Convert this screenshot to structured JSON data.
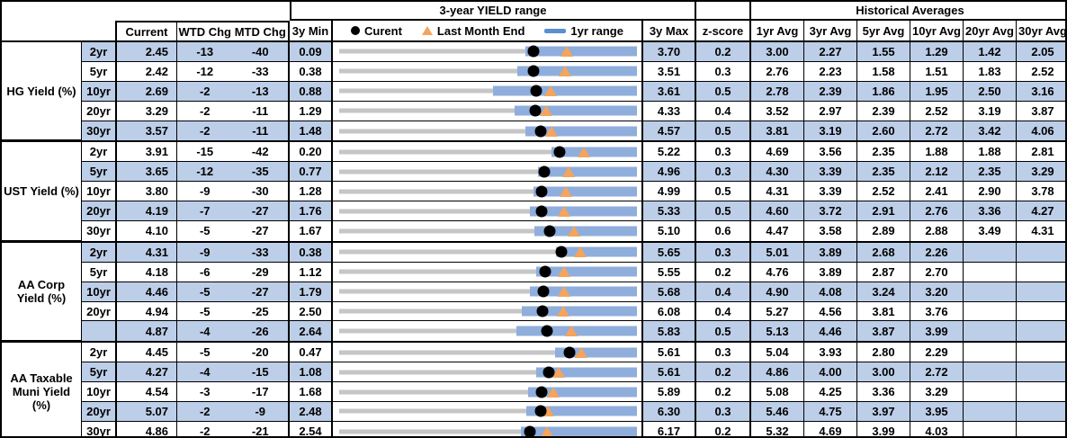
{
  "labels": {
    "range_title": "3-year YIELD range",
    "hist_title": "Historical Averages",
    "legend_current": "Curent",
    "legend_lme": "Last Month End",
    "legend_1yr": "1yr range"
  },
  "headers": {
    "current": "Current",
    "wtd": "WTD Chg",
    "mtd": "MTD Chg",
    "min": "3y Min",
    "max": "3y Max",
    "z": "z-score",
    "avgs": [
      "1yr Avg",
      "3yr Avg",
      "5yr Avg",
      "10yr Avg",
      "20yr Avg",
      "30yr Avg"
    ]
  },
  "colors": {
    "stripe": "#BCCEE8",
    "bar_1yr": "#8FAEDC",
    "track": "#C6C6C6",
    "marker_orange": "#F4A45C",
    "dot": "#000000"
  },
  "chart_data": {
    "type": "table",
    "title": "3-year YIELD range",
    "note": "Each row: bullet chart mapping [3y Min, 3y Max]; gray track = 3y range, blue bar = 1yr range (r1_lo to 3y Max), black dot = Current, orange triangle = Last Month End (current - mtd/100). r1_lo estimated from pixels.",
    "groups": [
      {
        "label": "HG Yield (%)",
        "rows": [
          {
            "tenor": "2yr",
            "current": "2.45",
            "wtd": "-13",
            "mtd": "-40",
            "min": "0.09",
            "max": "3.70",
            "lme": 2.85,
            "r1_lo": 2.35,
            "r1_hi": 3.7,
            "z": "0.2",
            "avgs": [
              "3.00",
              "2.27",
              "1.55",
              "1.29",
              "1.42",
              "2.05"
            ]
          },
          {
            "tenor": "5yr",
            "current": "2.42",
            "wtd": "-12",
            "mtd": "-33",
            "min": "0.38",
            "max": "3.51",
            "lme": 2.75,
            "r1_lo": 2.25,
            "r1_hi": 3.51,
            "z": "0.3",
            "avgs": [
              "2.76",
              "2.23",
              "1.58",
              "1.51",
              "1.83",
              "2.52"
            ]
          },
          {
            "tenor": "10yr",
            "current": "2.69",
            "wtd": "-2",
            "mtd": "-13",
            "min": "0.88",
            "max": "3.61",
            "lme": 2.82,
            "r1_lo": 2.29,
            "r1_hi": 3.61,
            "z": "0.5",
            "avgs": [
              "2.78",
              "2.39",
              "1.86",
              "1.95",
              "2.50",
              "3.16"
            ]
          },
          {
            "tenor": "20yr",
            "current": "3.29",
            "wtd": "-2",
            "mtd": "-11",
            "min": "1.29",
            "max": "4.33",
            "lme": 3.4,
            "r1_lo": 3.08,
            "r1_hi": 4.33,
            "z": "0.4",
            "avgs": [
              "3.52",
              "2.97",
              "2.39",
              "2.52",
              "3.19",
              "3.87"
            ]
          },
          {
            "tenor": "30yr",
            "current": "3.57",
            "wtd": "-2",
            "mtd": "-11",
            "min": "1.48",
            "max": "4.57",
            "lme": 3.68,
            "r1_lo": 3.41,
            "r1_hi": 4.57,
            "z": "0.5",
            "avgs": [
              "3.81",
              "3.19",
              "2.60",
              "2.72",
              "3.42",
              "4.06"
            ]
          }
        ]
      },
      {
        "label": "UST Yield (%)",
        "rows": [
          {
            "tenor": "2yr",
            "current": "3.91",
            "wtd": "-15",
            "mtd": "-42",
            "min": "0.20",
            "max": "5.22",
            "lme": 4.33,
            "r1_lo": 3.78,
            "r1_hi": 5.22,
            "z": "0.3",
            "avgs": [
              "4.69",
              "3.56",
              "2.35",
              "1.88",
              "1.88",
              "2.81"
            ]
          },
          {
            "tenor": "5yr",
            "current": "3.65",
            "wtd": "-12",
            "mtd": "-35",
            "min": "0.77",
            "max": "4.96",
            "lme": 4.0,
            "r1_lo": 3.57,
            "r1_hi": 4.96,
            "z": "0.3",
            "avgs": [
              "4.30",
              "3.39",
              "2.35",
              "2.12",
              "2.35",
              "3.29"
            ]
          },
          {
            "tenor": "10yr",
            "current": "3.80",
            "wtd": "-9",
            "mtd": "-30",
            "min": "1.28",
            "max": "4.99",
            "lme": 4.1,
            "r1_lo": 3.7,
            "r1_hi": 4.99,
            "z": "0.5",
            "avgs": [
              "4.31",
              "3.39",
              "2.52",
              "2.41",
              "2.90",
              "3.78"
            ]
          },
          {
            "tenor": "20yr",
            "current": "4.19",
            "wtd": "-7",
            "mtd": "-27",
            "min": "1.76",
            "max": "5.33",
            "lme": 4.46,
            "r1_lo": 4.05,
            "r1_hi": 5.33,
            "z": "0.5",
            "avgs": [
              "4.60",
              "3.72",
              "2.91",
              "2.76",
              "3.36",
              "4.27"
            ]
          },
          {
            "tenor": "30yr",
            "current": "4.10",
            "wtd": "-5",
            "mtd": "-27",
            "min": "1.67",
            "max": "5.10",
            "lme": 4.37,
            "r1_lo": 3.92,
            "r1_hi": 5.1,
            "z": "0.6",
            "avgs": [
              "4.47",
              "3.58",
              "2.89",
              "2.88",
              "3.49",
              "4.31"
            ]
          }
        ]
      },
      {
        "label": "AA Corp Yield (%)",
        "rows": [
          {
            "tenor": "2yr",
            "current": "4.31",
            "wtd": "-9",
            "mtd": "-33",
            "min": "0.38",
            "max": "5.65",
            "lme": 4.64,
            "r1_lo": 4.21,
            "r1_hi": 5.65,
            "z": "0.3",
            "avgs": [
              "5.01",
              "3.89",
              "2.68",
              "2.26",
              "",
              ""
            ]
          },
          {
            "tenor": "5yr",
            "current": "4.18",
            "wtd": "-6",
            "mtd": "-29",
            "min": "1.12",
            "max": "5.55",
            "lme": 4.47,
            "r1_lo": 4.05,
            "r1_hi": 5.55,
            "z": "0.2",
            "avgs": [
              "4.76",
              "3.89",
              "2.87",
              "2.70",
              "",
              ""
            ]
          },
          {
            "tenor": "10yr",
            "current": "4.46",
            "wtd": "-5",
            "mtd": "-27",
            "min": "1.79",
            "max": "5.68",
            "lme": 4.73,
            "r1_lo": 4.28,
            "r1_hi": 5.68,
            "z": "0.4",
            "avgs": [
              "4.90",
              "4.08",
              "3.24",
              "3.20",
              "",
              ""
            ]
          },
          {
            "tenor": "20yr",
            "current": "4.94",
            "wtd": "-5",
            "mtd": "-25",
            "min": "2.50",
            "max": "6.08",
            "lme": 5.19,
            "r1_lo": 4.7,
            "r1_hi": 6.08,
            "z": "0.4",
            "avgs": [
              "5.27",
              "4.56",
              "3.81",
              "3.76",
              "",
              ""
            ]
          },
          {
            "tenor": "",
            "current": "4.87",
            "wtd": "-4",
            "mtd": "-26",
            "min": "2.64",
            "max": "5.83",
            "lme": 5.13,
            "r1_lo": 4.54,
            "r1_hi": 5.83,
            "z": "0.5",
            "avgs": [
              "5.13",
              "4.46",
              "3.87",
              "3.99",
              "",
              ""
            ]
          }
        ]
      },
      {
        "label": "AA Taxable Muni Yield (%)",
        "rows": [
          {
            "tenor": "2yr",
            "current": "4.45",
            "wtd": "-5",
            "mtd": "-20",
            "min": "0.47",
            "max": "5.61",
            "lme": 4.65,
            "r1_lo": 4.2,
            "r1_hi": 5.61,
            "z": "0.3",
            "avgs": [
              "5.04",
              "3.93",
              "2.80",
              "2.29",
              "",
              ""
            ]
          },
          {
            "tenor": "5yr",
            "current": "4.27",
            "wtd": "-4",
            "mtd": "-15",
            "min": "1.08",
            "max": "5.61",
            "lme": 4.42,
            "r1_lo": 4.08,
            "r1_hi": 5.61,
            "z": "0.2",
            "avgs": [
              "4.86",
              "4.00",
              "3.00",
              "2.72",
              "",
              ""
            ]
          },
          {
            "tenor": "10yr",
            "current": "4.54",
            "wtd": "-3",
            "mtd": "-17",
            "min": "1.68",
            "max": "5.89",
            "lme": 4.71,
            "r1_lo": 4.35,
            "r1_hi": 5.89,
            "z": "0.2",
            "avgs": [
              "5.08",
              "4.25",
              "3.36",
              "3.29",
              "",
              ""
            ]
          },
          {
            "tenor": "20yr",
            "current": "5.07",
            "wtd": "-2",
            "mtd": "-9",
            "min": "2.48",
            "max": "6.30",
            "lme": 5.16,
            "r1_lo": 4.88,
            "r1_hi": 6.3,
            "z": "0.3",
            "avgs": [
              "5.46",
              "4.75",
              "3.97",
              "3.95",
              "",
              ""
            ]
          },
          {
            "tenor": "30yr",
            "current": "4.86",
            "wtd": "-2",
            "mtd": "-21",
            "min": "2.54",
            "max": "6.17",
            "lme": 5.07,
            "r1_lo": 4.76,
            "r1_hi": 6.17,
            "z": "0.2",
            "avgs": [
              "5.32",
              "4.69",
              "3.99",
              "4.03",
              "",
              ""
            ]
          }
        ]
      }
    ]
  }
}
